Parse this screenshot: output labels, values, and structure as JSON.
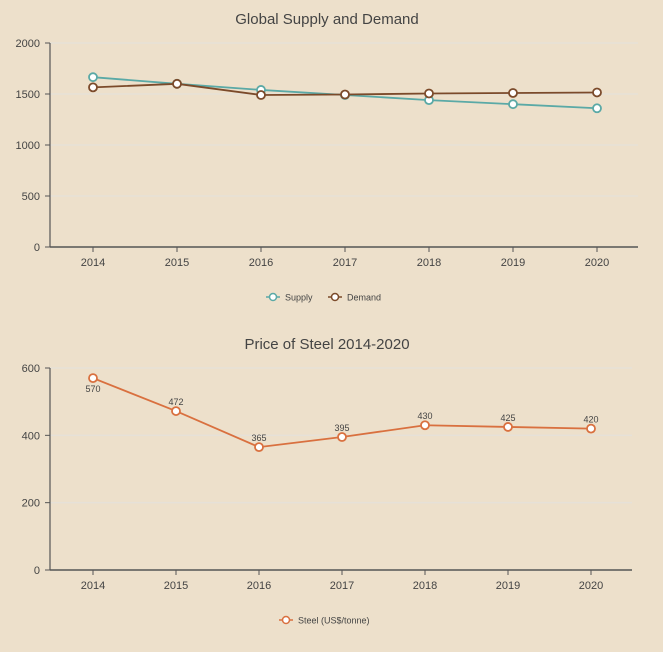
{
  "chart_data": [
    {
      "type": "line",
      "title": "Global Supply and Demand",
      "xlabel": "",
      "ylabel": "",
      "categories": [
        "2014",
        "2015",
        "2016",
        "2017",
        "2018",
        "2019",
        "2020"
      ],
      "ylim": [
        0,
        2000
      ],
      "yticks": [
        "0",
        "500",
        "1000",
        "1500",
        "2000"
      ],
      "grid": true,
      "legend_position": "bottom",
      "series": [
        {
          "name": "Supply",
          "color": "#5aa9a6",
          "values": [
            1665,
            1600,
            1540,
            1490,
            1440,
            1400,
            1360
          ]
        },
        {
          "name": "Demand",
          "color": "#7b4a2a",
          "values": [
            1565,
            1600,
            1490,
            1495,
            1505,
            1510,
            1515
          ]
        }
      ]
    },
    {
      "type": "line",
      "title": "Price of Steel 2014-2020",
      "xlabel": "",
      "ylabel": "",
      "categories": [
        "2014",
        "2015",
        "2016",
        "2017",
        "2018",
        "2019",
        "2020"
      ],
      "ylim": [
        0,
        600
      ],
      "yticks": [
        "0",
        "200",
        "400",
        "600"
      ],
      "grid": true,
      "legend_position": "bottom",
      "series": [
        {
          "name": "Steel (US$/tonne)",
          "color": "#d9703f",
          "values": [
            570,
            472,
            365,
            395,
            430,
            425,
            420
          ],
          "labels": [
            "570",
            "472",
            "365",
            "395",
            "430",
            "425",
            "420"
          ]
        }
      ]
    }
  ]
}
